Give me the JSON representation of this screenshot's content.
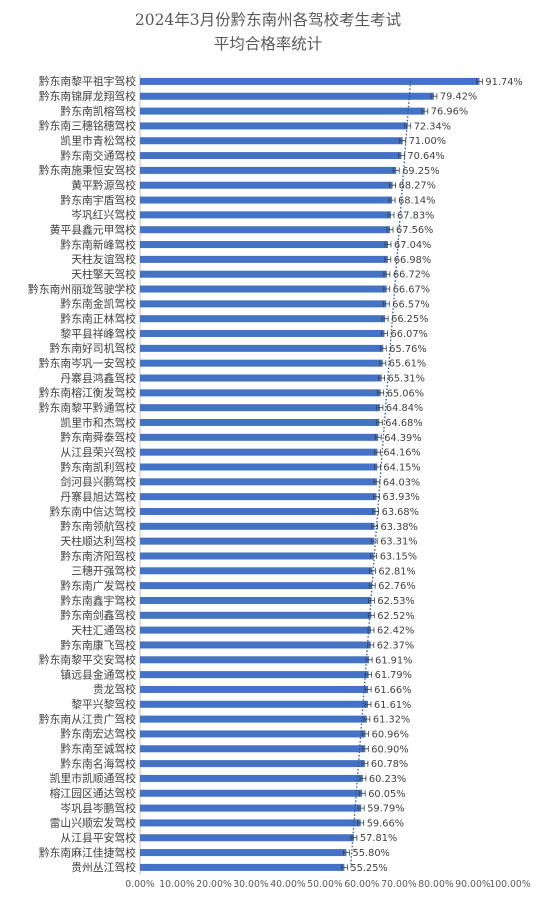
{
  "chart_data": {
    "type": "bar",
    "orientation": "horizontal",
    "title_lines": [
      "2024年3月份黔东南州各驾校考生考试",
      "平均合格率统计"
    ],
    "categories": [
      "黔东南黎平祖宇驾校",
      "黔东南锦屏龙翔驾校",
      "黔东南凯榕驾校",
      "黔东南三穗铭穗驾校",
      "凯里市青松驾校",
      "黔东南交通驾校",
      "黔东南施秉恒安驾校",
      "黄平黔源驾校",
      "黔东南宇盾驾校",
      "岑巩红兴驾校",
      "黄平县鑫元甲驾校",
      "黔东南新峰驾校",
      "天柱友谊驾校",
      "天柱擎天驾校",
      "黔东南州丽珑驾驶学校",
      "黔东南金凯驾校",
      "黔东南正林驾校",
      "黎平县祥峰驾校",
      "黔东南好司机驾校",
      "黔东南岑巩一安驾校",
      "丹寨县鸿鑫驾校",
      "黔东南榕江衡发驾校",
      "黔东南黎平黔通驾校",
      "凯里市和杰驾校",
      "黔东南舜泰驾校",
      "从江县荣兴驾校",
      "黔东南凯利驾校",
      "剑河县兴鹏驾校",
      "丹寨县旭达驾校",
      "黔东南中信达驾校",
      "黔东南领航驾校",
      "天柱顺达利驾校",
      "黔东南济阳驾校",
      "三穗开强驾校",
      "黔东南广发驾校",
      "黔东南鑫宇驾校",
      "黔东南剑鑫驾校",
      "天柱汇通驾校",
      "黔东南康飞驾校",
      "黔东南黎平交安驾校",
      "镇远县金通驾校",
      "贵龙驾校",
      "黎平兴黎驾校",
      "黔东南从江贵广驾校",
      "黔东南宏达驾校",
      "黔东南至诚驾校",
      "黔东南名海驾校",
      "凯里市凯顺通驾校",
      "榕江园区通达驾校",
      "岑巩县岑鹏驾校",
      "雷山兴顺宏发驾校",
      "从江县平安驾校",
      "黔东南麻江佳捷驾校",
      "贵州丛江驾校"
    ],
    "values": [
      91.74,
      79.42,
      76.96,
      72.34,
      71.0,
      70.64,
      69.25,
      68.27,
      68.14,
      67.83,
      67.56,
      67.04,
      66.98,
      66.72,
      66.67,
      66.57,
      66.25,
      66.07,
      65.76,
      65.61,
      65.31,
      65.06,
      64.84,
      64.68,
      64.39,
      64.16,
      64.15,
      64.03,
      63.93,
      63.68,
      63.38,
      63.31,
      63.15,
      62.81,
      62.76,
      62.53,
      62.52,
      62.42,
      62.37,
      61.91,
      61.79,
      61.66,
      61.61,
      61.32,
      60.96,
      60.9,
      60.78,
      60.23,
      60.05,
      59.79,
      59.66,
      57.81,
      55.8,
      55.25
    ],
    "value_labels": [
      "91.74%",
      "79.42%",
      "76.96%",
      "72.34%",
      "71.00%",
      "70.64%",
      "69.25%",
      "68.27%",
      "68.14%",
      "67.83%",
      "67.56%",
      "67.04%",
      "66.98%",
      "66.72%",
      "66.67%",
      "66.57%",
      "66.25%",
      "66.07%",
      "65.76%",
      "65.61%",
      "65.31%",
      "65.06%",
      "64.84%",
      "64.68%",
      "64.39%",
      "64.16%",
      "64.15%",
      "64.03%",
      "63.93%",
      "63.68%",
      "63.38%",
      "63.31%",
      "63.15%",
      "62.81%",
      "62.76%",
      "62.53%",
      "62.52%",
      "62.42%",
      "62.37%",
      "61.91%",
      "61.79%",
      "61.66%",
      "61.61%",
      "61.32%",
      "60.96%",
      "60.90%",
      "60.78%",
      "60.23%",
      "60.05%",
      "59.79%",
      "59.66%",
      "57.81%",
      "55.80%",
      "55.25%"
    ],
    "xlim": [
      0,
      100
    ],
    "x_ticks": [
      "0.00%",
      "10.00%",
      "20.00%",
      "30.00%",
      "40.00%",
      "50.00%",
      "60.00%",
      "70.00%",
      "80.00%",
      "90.00%",
      "100.00%"
    ],
    "bar_color": "#4472c4",
    "error_bars": true,
    "trendline": "dotted",
    "grid": false
  }
}
